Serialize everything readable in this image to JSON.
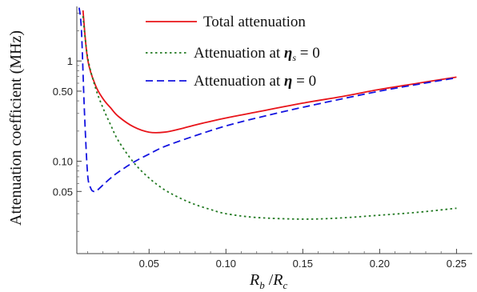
{
  "chart_data": {
    "type": "line",
    "title": "",
    "xlabel": {
      "main": "R",
      "sub_b": "b",
      "sep": " /",
      "main2": "R",
      "sub_c": "c"
    },
    "ylabel": "Attenuation coefficient (MHz)",
    "xlim": [
      0.003,
      0.255
    ],
    "ylim": [
      0.012,
      3.5
    ],
    "y_scale": "log",
    "grid": false,
    "legend_position": "top-right",
    "x_ticks": [
      {
        "value": 0.05,
        "label": "0.05"
      },
      {
        "value": 0.1,
        "label": "0.10"
      },
      {
        "value": 0.15,
        "label": "0.15"
      },
      {
        "value": 0.2,
        "label": "0.20"
      },
      {
        "value": 0.25,
        "label": "0.25"
      }
    ],
    "y_ticks": [
      {
        "value": 0.05,
        "label": "0.05"
      },
      {
        "value": 0.1,
        "label": "0.10"
      },
      {
        "value": 0.5,
        "label": "0.50"
      },
      {
        "value": 1.0,
        "label": "1"
      }
    ],
    "series": [
      {
        "name": "Total attenuation",
        "style": "solid",
        "color": "#e8141a",
        "x": [
          0.007,
          0.01,
          0.015,
          0.02,
          0.025,
          0.03,
          0.04,
          0.05,
          0.06,
          0.07,
          0.08,
          0.09,
          0.1,
          0.12,
          0.15,
          0.175,
          0.2,
          0.225,
          0.25
        ],
        "y": [
          3.2,
          1.05,
          0.58,
          0.42,
          0.34,
          0.28,
          0.22,
          0.195,
          0.195,
          0.21,
          0.23,
          0.25,
          0.27,
          0.31,
          0.38,
          0.44,
          0.52,
          0.6,
          0.69
        ]
      },
      {
        "name": {
          "prefix": "Attenuation at ",
          "symbol": "η",
          "sub": "s",
          "suffix": " = 0"
        },
        "style": "dotted",
        "color": "#237a23",
        "x": [
          0.007,
          0.01,
          0.015,
          0.02,
          0.025,
          0.03,
          0.04,
          0.05,
          0.06,
          0.07,
          0.08,
          0.09,
          0.1,
          0.12,
          0.15,
          0.175,
          0.2,
          0.225,
          0.25
        ],
        "y": [
          2.8,
          1.1,
          0.55,
          0.34,
          0.23,
          0.16,
          0.097,
          0.068,
          0.052,
          0.043,
          0.037,
          0.033,
          0.03,
          0.0275,
          0.0265,
          0.0272,
          0.029,
          0.031,
          0.034
        ]
      },
      {
        "name": {
          "prefix": "Attenuation at ",
          "symbol": "η",
          "suffix": " = 0"
        },
        "style": "dashed",
        "color": "#1414e0",
        "x": [
          0.0045,
          0.006,
          0.008,
          0.01,
          0.012,
          0.014,
          0.016,
          0.02,
          0.025,
          0.03,
          0.04,
          0.05,
          0.06,
          0.08,
          0.1,
          0.12,
          0.15,
          0.2,
          0.25
        ],
        "y": [
          3.4,
          2.0,
          0.3,
          0.075,
          0.054,
          0.05,
          0.051,
          0.058,
          0.068,
          0.078,
          0.098,
          0.118,
          0.14,
          0.18,
          0.225,
          0.27,
          0.345,
          0.5,
          0.68
        ]
      }
    ]
  }
}
